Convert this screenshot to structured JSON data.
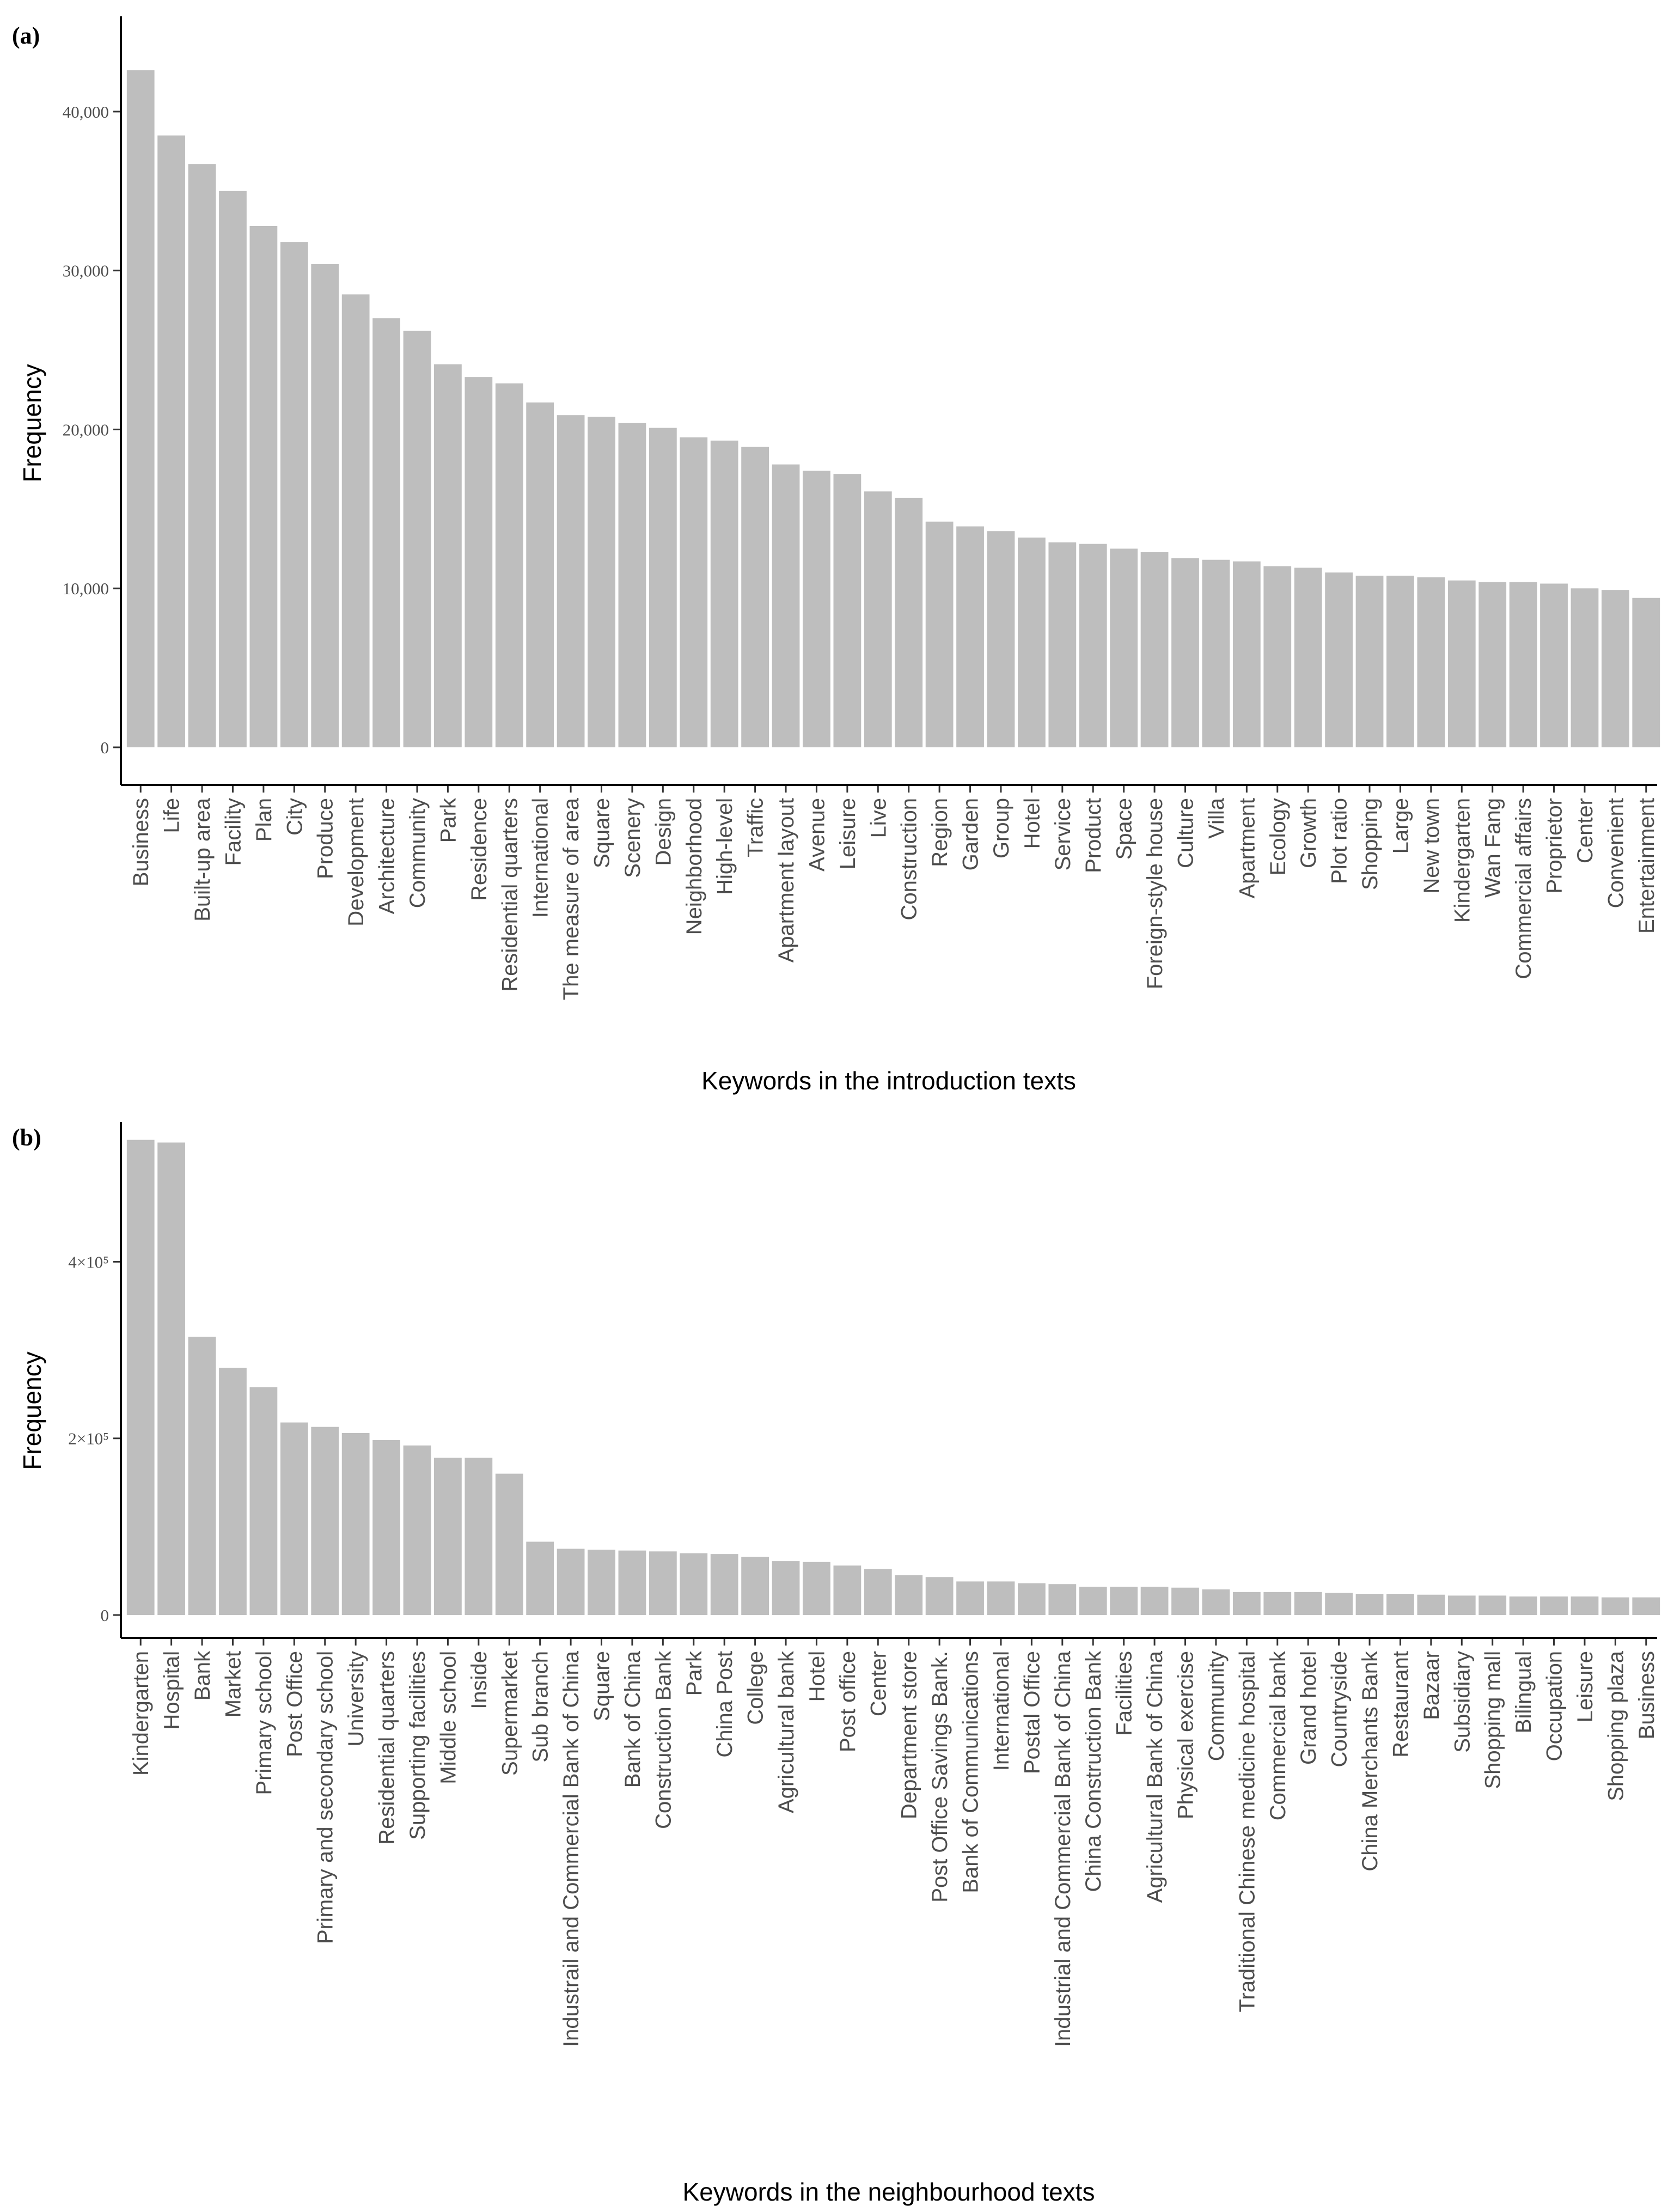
{
  "chart_data": [
    {
      "panel_label": "(a)",
      "type": "bar",
      "xlabel": "Keywords in the introduction texts",
      "ylabel": "Frequency",
      "ylim": [
        0,
        45000
      ],
      "y_ticks": [
        0,
        10000,
        20000,
        30000,
        40000
      ],
      "y_tick_labels": [
        "0",
        "10,000",
        "20,000",
        "30,000",
        "40,000"
      ],
      "bar_color": "#bebebe",
      "categories": [
        "Business",
        "Life",
        "Built-up area",
        "Facility",
        "Plan",
        "City",
        "Produce",
        "Development",
        "Architecture",
        "Community",
        "Park",
        "Residence",
        "Residential quarters",
        "International",
        "The measure of area",
        "Square",
        "Scenery",
        "Design",
        "Neighborhood",
        "High-level",
        "Traffic",
        "Apartment layout",
        "Avenue",
        "Leisure",
        "Live",
        "Construction",
        "Region",
        "Garden",
        "Group",
        "Hotel",
        "Service",
        "Product",
        "Space",
        "Foreign-style house",
        "Culture",
        "Villa",
        "Apartment",
        "Ecology",
        "Growth",
        "Plot ratio",
        "Shopping",
        "Large",
        "New town",
        "Kindergarten",
        "Wan Fang",
        "Commercial affairs",
        "Proprietor",
        "Center",
        "Convenient",
        "Entertainment"
      ],
      "values": [
        42600,
        38500,
        36700,
        35000,
        32800,
        31800,
        30400,
        28500,
        27000,
        26200,
        24100,
        23300,
        22900,
        21700,
        20900,
        20800,
        20400,
        20100,
        19500,
        19300,
        18900,
        17800,
        17400,
        17200,
        16100,
        15700,
        14200,
        13900,
        13600,
        13200,
        12900,
        12800,
        12500,
        12300,
        11900,
        11800,
        11700,
        11400,
        11300,
        11000,
        10800,
        10800,
        10700,
        10500,
        10400,
        10400,
        10300,
        10000,
        9900,
        9400
      ]
    },
    {
      "panel_label": "(b)",
      "type": "bar",
      "xlabel": "Keywords in the neighbourhood texts",
      "ylabel": "Frequency",
      "ylim": [
        0,
        560000
      ],
      "y_ticks": [
        0,
        200000,
        400000
      ],
      "y_tick_labels": [
        "0",
        "2×10⁵",
        "4×10⁵"
      ],
      "bar_color": "#bebebe",
      "categories": [
        "Kindergarten",
        "Hospital",
        "Bank",
        "Market",
        "Primary school",
        "Post Office",
        "Primary and secondary school",
        "University",
        "Residential quarters",
        "Supporting facilities",
        "Middle school",
        "Inside",
        "Supermarket",
        "Sub branch",
        "Industrail and Commercial Bank of China",
        "Square",
        "Bank of China",
        "Construction Bank",
        "Park",
        "China Post",
        "College",
        "Agricultural bank",
        "Hotel",
        "Post office",
        "Center",
        "Department store",
        "Post Office Savings Bank.",
        "Bank of Communications",
        "International",
        "Postal Office",
        "Industrial and Commercial Bank of China",
        "China Construction Bank",
        "Facilities",
        "Agricultural Bank of China",
        "Physical exercise",
        "Community",
        "Traditional Chinese medicine hospital",
        "Commercial bank",
        "Grand hotel",
        "Countryside",
        "China Merchants Bank",
        "Restaurant",
        "Bazaar",
        "Subsidiary",
        "Shopping mall",
        "Bilingual",
        "Occupation",
        "Leisure",
        "Shopping plaza",
        "Business"
      ],
      "values": [
        538000,
        535000,
        315000,
        280000,
        258000,
        218000,
        213000,
        206000,
        198000,
        192000,
        178000,
        178000,
        160000,
        83000,
        75000,
        74000,
        73000,
        72000,
        70000,
        69000,
        66000,
        61000,
        60000,
        56000,
        52000,
        45000,
        43000,
        38000,
        38000,
        36000,
        35000,
        32000,
        32000,
        32000,
        31000,
        29000,
        26000,
        26000,
        26000,
        25000,
        24000,
        24000,
        23000,
        22000,
        22000,
        21000,
        21000,
        21000,
        20000,
        20000
      ]
    }
  ]
}
